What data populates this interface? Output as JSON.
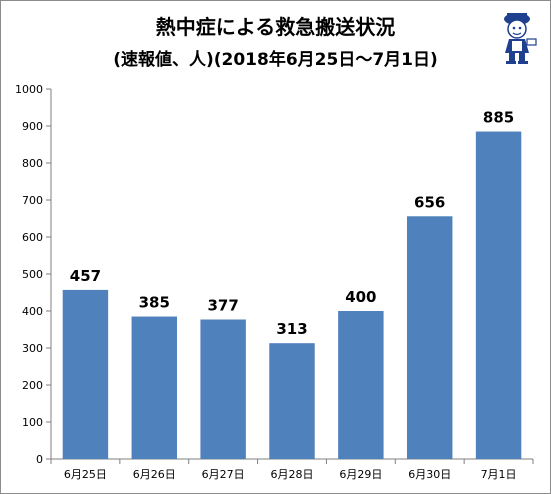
{
  "title": "熱中症による救急搬送状況",
  "subtitle": "(速報値、人)(2018年6月25日〜7月1日)",
  "chart_data": {
    "type": "bar",
    "categories": [
      "6月25日",
      "6月26日",
      "6月27日",
      "6月28日",
      "6月29日",
      "6月30日",
      "7月1日"
    ],
    "values": [
      457,
      385,
      377,
      313,
      400,
      656,
      885
    ],
    "data_labels": [
      "457",
      "385",
      "377",
      "313",
      "400",
      "656",
      "885"
    ],
    "ylim": [
      0,
      1000
    ],
    "yticks": [
      "0",
      "100",
      "200",
      "300",
      "400",
      "500",
      "600",
      "700",
      "800",
      "900",
      "1000"
    ],
    "grid": false,
    "legend": "none",
    "bar_color": "#4f81bd"
  }
}
